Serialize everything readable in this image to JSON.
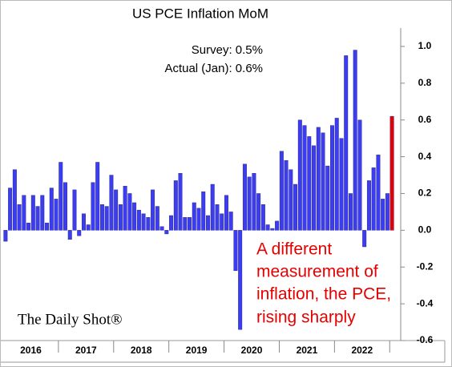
{
  "chart_data": {
    "type": "bar",
    "title": "US PCE Inflation MoM",
    "annotations": [
      "Survey:  0.5%",
      "Actual (Jan):  0.6%"
    ],
    "note_lines": [
      "A different",
      "measurement of",
      "inflation, the PCE,",
      "rising sharply"
    ],
    "source": "The Daily Shot®",
    "categories": [
      null,
      null,
      null,
      null,
      null,
      null,
      "2016",
      null,
      null,
      null,
      null,
      null,
      null,
      null,
      null,
      null,
      null,
      null,
      "2017",
      null,
      null,
      null,
      null,
      null,
      null,
      null,
      null,
      null,
      null,
      null,
      "2018",
      null,
      null,
      null,
      null,
      null,
      null,
      null,
      null,
      null,
      null,
      null,
      "2019",
      null,
      null,
      null,
      null,
      null,
      null,
      null,
      null,
      null,
      null,
      null,
      "2020",
      null,
      null,
      null,
      null,
      null,
      null,
      null,
      null,
      null,
      null,
      null,
      "2021",
      null,
      null,
      null,
      null,
      null,
      null,
      null,
      null,
      null,
      null,
      null,
      "2022",
      null,
      null,
      null,
      null,
      null,
      null
    ],
    "values": [
      -0.06,
      0.23,
      0.33,
      0.14,
      0.19,
      0.04,
      0.19,
      0.13,
      0.19,
      0.04,
      0.23,
      0.17,
      0.37,
      0.26,
      -0.05,
      0.22,
      -0.03,
      0.09,
      0.03,
      0.26,
      0.37,
      0.14,
      0.13,
      0.3,
      0.22,
      0.14,
      0.24,
      0.2,
      0.15,
      0.11,
      0.09,
      0.07,
      0.22,
      0.13,
      0.02,
      -0.02,
      0.08,
      0.27,
      0.31,
      0.07,
      0.07,
      0.15,
      0.12,
      0.21,
      0.08,
      0.25,
      0.14,
      0.09,
      0.19,
      0.1,
      -0.22,
      -0.54,
      0.36,
      0.29,
      0.31,
      0.2,
      0.14,
      0.03,
      0.01,
      0.05,
      0.43,
      0.38,
      0.33,
      0.25,
      0.6,
      0.57,
      0.51,
      0.46,
      0.56,
      0.53,
      0.35,
      0.57,
      0.61,
      0.5,
      0.95,
      0.2,
      0.98,
      0.6,
      -0.09,
      0.27,
      0.34,
      0.41,
      0.17,
      0.2,
      0.62
    ],
    "colors": [
      "#3c3cf0",
      "#3c3cf0",
      "#3c3cf0",
      "#3c3cf0",
      "#3c3cf0",
      "#3c3cf0",
      "#3c3cf0",
      "#3c3cf0",
      "#3c3cf0",
      "#3c3cf0",
      "#3c3cf0",
      "#3c3cf0",
      "#3c3cf0",
      "#3c3cf0",
      "#3c3cf0",
      "#3c3cf0",
      "#3c3cf0",
      "#3c3cf0",
      "#3c3cf0",
      "#3c3cf0",
      "#3c3cf0",
      "#3c3cf0",
      "#3c3cf0",
      "#3c3cf0",
      "#3c3cf0",
      "#3c3cf0",
      "#3c3cf0",
      "#3c3cf0",
      "#3c3cf0",
      "#3c3cf0",
      "#3c3cf0",
      "#3c3cf0",
      "#3c3cf0",
      "#3c3cf0",
      "#3c3cf0",
      "#3c3cf0",
      "#3c3cf0",
      "#3c3cf0",
      "#3c3cf0",
      "#3c3cf0",
      "#3c3cf0",
      "#3c3cf0",
      "#3c3cf0",
      "#3c3cf0",
      "#3c3cf0",
      "#3c3cf0",
      "#3c3cf0",
      "#3c3cf0",
      "#3c3cf0",
      "#3c3cf0",
      "#3c3cf0",
      "#3c3cf0",
      "#3c3cf0",
      "#3c3cf0",
      "#3c3cf0",
      "#3c3cf0",
      "#3c3cf0",
      "#3c3cf0",
      "#3c3cf0",
      "#3c3cf0",
      "#3c3cf0",
      "#3c3cf0",
      "#3c3cf0",
      "#3c3cf0",
      "#3c3cf0",
      "#3c3cf0",
      "#3c3cf0",
      "#3c3cf0",
      "#3c3cf0",
      "#3c3cf0",
      "#3c3cf0",
      "#3c3cf0",
      "#3c3cf0",
      "#3c3cf0",
      "#3c3cf0",
      "#3c3cf0",
      "#3c3cf0",
      "#3c3cf0",
      "#3c3cf0",
      "#3c3cf0",
      "#3c3cf0",
      "#3c3cf0",
      "#3c3cf0",
      "#3c3cf0",
      "#e60000"
    ],
    "ylim": [
      -0.6,
      1.1
    ],
    "yticks": [
      {
        "value": 1.0,
        "label": "1.0"
      },
      0.8,
      0.6,
      0.4,
      0.2,
      {
        "value": 0.0,
        "label": "0.0"
      },
      -0.2,
      -0.4,
      -0.6
    ],
    "grid": false
  }
}
